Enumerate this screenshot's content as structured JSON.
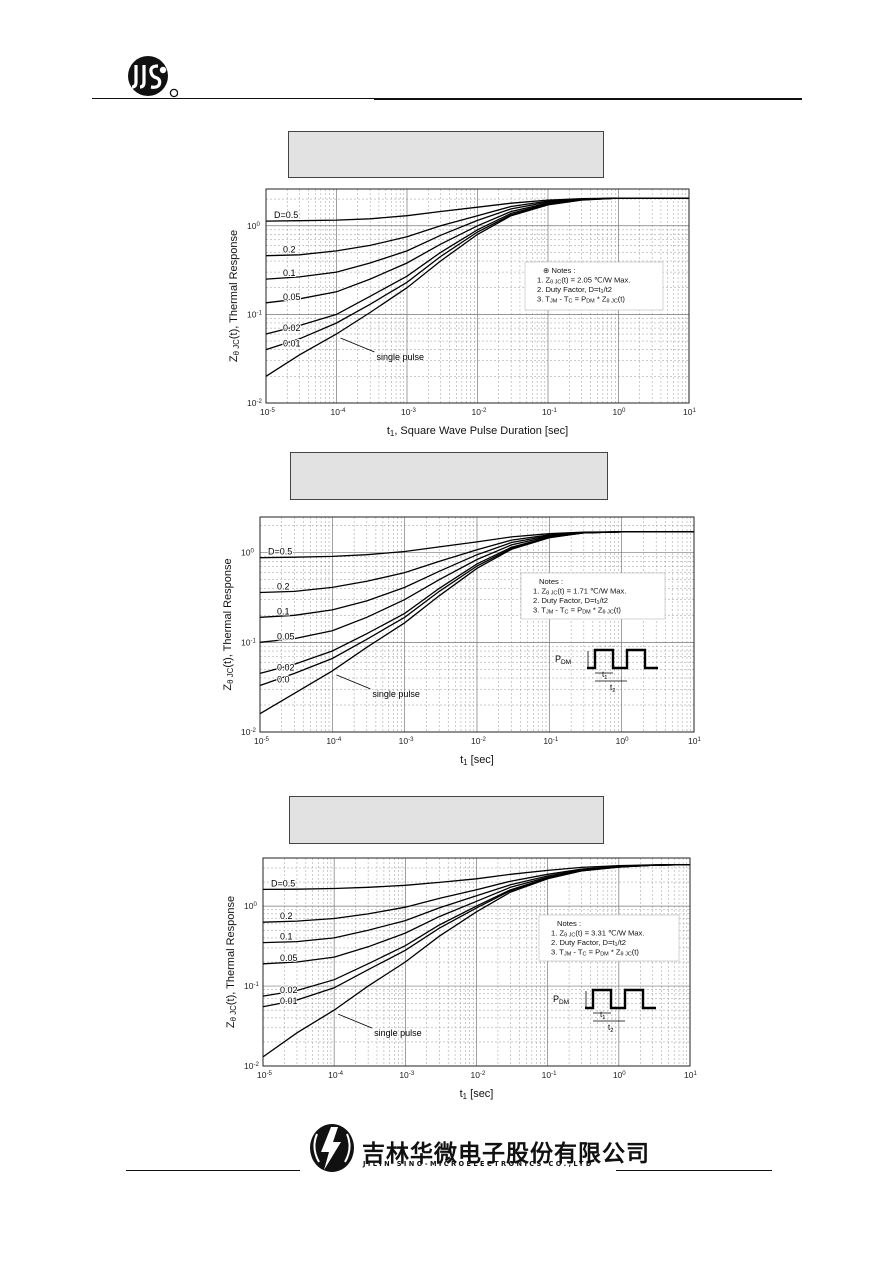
{
  "header": {
    "logo_icon": "jsmc-company-logo",
    "logo_letters": "JJS"
  },
  "footer": {
    "logo_icon": "sino-lightning-logo",
    "company_cn": "吉林华微电子股份有限公司",
    "company_en": "JILIN SINO-MICROELECTRONICS CO.,LTD"
  },
  "chart_data": [
    {
      "type": "line",
      "log_x": true,
      "log_y": true,
      "xlim": [
        1e-05,
        10
      ],
      "ylim": [
        0.01,
        2.6
      ],
      "y_tick_exponents": [
        -2,
        -1,
        0
      ],
      "x_tick_exponents": [
        -5,
        -4,
        -3,
        -2,
        -1,
        0,
        1
      ],
      "tick_base": "10",
      "title_box_empty": true,
      "ylabel_parts": [
        "Z",
        "θ JC",
        "(t), Thermal Response"
      ],
      "xlabel_parts": [
        "t",
        "1",
        ", Square Wave Pulse Duration [sec]"
      ],
      "zthjc_max": 2.05,
      "x": [
        1e-05,
        3e-05,
        0.0001,
        0.0003,
        0.001,
        0.003,
        0.01,
        0.03,
        0.1,
        0.3,
        1,
        3,
        10
      ],
      "series": [
        {
          "name": "D=0.5",
          "values": [
            1.13,
            1.14,
            1.16,
            1.2,
            1.3,
            1.45,
            1.62,
            1.8,
            1.95,
            2.02,
            2.05,
            2.05,
            2.05
          ]
        },
        {
          "name": "0.2",
          "values": [
            0.46,
            0.47,
            0.52,
            0.6,
            0.75,
            1.0,
            1.3,
            1.65,
            1.9,
            2.0,
            2.05,
            2.05,
            2.05
          ]
        },
        {
          "name": "0.1",
          "values": [
            0.25,
            0.265,
            0.3,
            0.38,
            0.52,
            0.78,
            1.15,
            1.55,
            1.85,
            2.0,
            2.05,
            2.05,
            2.05
          ]
        },
        {
          "name": "0.05",
          "values": [
            0.135,
            0.15,
            0.18,
            0.25,
            0.38,
            0.62,
            1.0,
            1.45,
            1.8,
            1.98,
            2.05,
            2.05,
            2.05
          ]
        },
        {
          "name": "0.02",
          "values": [
            0.06,
            0.075,
            0.1,
            0.16,
            0.27,
            0.5,
            0.9,
            1.38,
            1.76,
            1.97,
            2.05,
            2.05,
            2.05
          ]
        },
        {
          "name": "0.01",
          "values": [
            0.04,
            0.053,
            0.08,
            0.13,
            0.23,
            0.45,
            0.85,
            1.33,
            1.74,
            1.96,
            2.05,
            2.05,
            2.05
          ]
        },
        {
          "name": "single pulse",
          "values": [
            0.02,
            0.035,
            0.06,
            0.105,
            0.2,
            0.4,
            0.8,
            1.3,
            1.72,
            1.95,
            2.05,
            2.05,
            2.05
          ]
        }
      ],
      "series_labels": [
        "D=0.5",
        "0.2",
        "0.1",
        "0.05",
        "0.02",
        "0.01",
        "single pulse"
      ],
      "notes": {
        "lines": [
          {
            "pre": "Notes :",
            "sub": "",
            "post": ""
          },
          {
            "pre": "1. Z",
            "sub": "θ JC",
            "post": "(t) = 2.05 ℃/W Max."
          },
          {
            "pre": "2. Duty Factor, D=t",
            "sub": "1",
            "post": "/t2"
          },
          {
            "pre": "3. T",
            "sub": "JM",
            "post": " - T",
            "sub2": "C",
            "post2": " = P",
            "sub3": "DM",
            "post3": " * Z",
            "sub4": "θ JC",
            "post4": "(t)"
          }
        ],
        "bullet": "⊕"
      },
      "pulse_diagram": null
    },
    {
      "type": "line",
      "log_x": true,
      "log_y": true,
      "xlim": [
        1e-05,
        10
      ],
      "ylim": [
        0.01,
        2.5
      ],
      "y_tick_exponents": [
        -2,
        -1,
        0
      ],
      "x_tick_exponents": [
        -5,
        -4,
        -3,
        -2,
        -1,
        0,
        1
      ],
      "tick_base": "10",
      "title_box_empty": true,
      "ylabel_parts": [
        "Z",
        "θ JC",
        "(t), Thermal Response"
      ],
      "xlabel_parts": [
        "t",
        "1",
        " [sec]"
      ],
      "zthjc_max": 1.71,
      "x": [
        1e-05,
        3e-05,
        0.0001,
        0.0003,
        0.001,
        0.003,
        0.01,
        0.03,
        0.1,
        0.3,
        1,
        3,
        10
      ],
      "series": [
        {
          "name": "D=0.5",
          "values": [
            0.88,
            0.89,
            0.91,
            0.95,
            1.03,
            1.16,
            1.32,
            1.5,
            1.63,
            1.69,
            1.71,
            1.71,
            1.71
          ]
        },
        {
          "name": "0.2",
          "values": [
            0.36,
            0.37,
            0.41,
            0.48,
            0.6,
            0.8,
            1.08,
            1.38,
            1.58,
            1.68,
            1.71,
            1.71,
            1.71
          ]
        },
        {
          "name": "0.1",
          "values": [
            0.19,
            0.2,
            0.23,
            0.29,
            0.41,
            0.62,
            0.95,
            1.3,
            1.55,
            1.67,
            1.71,
            1.71,
            1.71
          ]
        },
        {
          "name": "0.05",
          "values": [
            0.1,
            0.11,
            0.135,
            0.19,
            0.3,
            0.5,
            0.84,
            1.22,
            1.52,
            1.67,
            1.71,
            1.71,
            1.71
          ]
        },
        {
          "name": "0.02",
          "values": [
            0.045,
            0.057,
            0.08,
            0.125,
            0.21,
            0.4,
            0.75,
            1.15,
            1.49,
            1.66,
            1.71,
            1.71,
            1.71
          ]
        },
        {
          "name": "0.0",
          "values": [
            0.033,
            0.045,
            0.066,
            0.108,
            0.19,
            0.37,
            0.71,
            1.12,
            1.48,
            1.66,
            1.71,
            1.71,
            1.71
          ]
        },
        {
          "name": "single pulse",
          "values": [
            0.016,
            0.027,
            0.048,
            0.088,
            0.165,
            0.33,
            0.67,
            1.09,
            1.47,
            1.66,
            1.71,
            1.71,
            1.71
          ]
        }
      ],
      "series_labels": [
        "D=0.5",
        "0.2",
        "0.1",
        "0.05",
        "0.02",
        "0.0",
        "single pulse"
      ],
      "notes": {
        "lines": [
          {
            "pre": "Notes :",
            "sub": "",
            "post": ""
          },
          {
            "pre": "1. Z",
            "sub": "θ JC",
            "post": "(t) = 1.71 ℃/W Max."
          },
          {
            "pre": "2. Duty Factor, D=t",
            "sub": "1",
            "post": "/t2"
          },
          {
            "pre": "3. T",
            "sub": "JM",
            "post": " - T",
            "sub2": "C",
            "post2": " = P",
            "sub3": "DM",
            "post3": " * Z",
            "sub4": "θ JC",
            "post4": "(t)"
          }
        ],
        "bullet": ""
      },
      "pulse_diagram": {
        "pdm": "P",
        "pdm_sub": "DM",
        "t1": "t",
        "t1_sub": "1",
        "t2": "t",
        "t2_sub": "2"
      }
    },
    {
      "type": "line",
      "log_x": true,
      "log_y": true,
      "xlim": [
        1e-05,
        10
      ],
      "ylim": [
        0.01,
        4.0
      ],
      "y_tick_exponents": [
        -2,
        -1,
        0
      ],
      "x_tick_exponents": [
        -5,
        -4,
        -3,
        -2,
        -1,
        0,
        1
      ],
      "tick_base": "10",
      "title_box_empty": true,
      "ylabel_parts": [
        "Z",
        "θ JC",
        "(t), Thermal Response"
      ],
      "xlabel_parts": [
        "t",
        "1",
        " [sec]"
      ],
      "zthjc_max": 3.31,
      "x": [
        1e-05,
        3e-05,
        0.0001,
        0.0003,
        0.001,
        0.003,
        0.01,
        0.03,
        0.1,
        0.3,
        1,
        3,
        10
      ],
      "series": [
        {
          "name": "D=0.5",
          "values": [
            1.62,
            1.63,
            1.66,
            1.72,
            1.82,
            1.98,
            2.2,
            2.5,
            2.8,
            3.05,
            3.2,
            3.28,
            3.31
          ]
        },
        {
          "name": "0.2",
          "values": [
            0.63,
            0.65,
            0.7,
            0.8,
            0.97,
            1.25,
            1.6,
            2.05,
            2.5,
            2.9,
            3.15,
            3.27,
            3.31
          ]
        },
        {
          "name": "0.1",
          "values": [
            0.35,
            0.36,
            0.4,
            0.5,
            0.66,
            0.95,
            1.35,
            1.85,
            2.38,
            2.85,
            3.12,
            3.26,
            3.31
          ]
        },
        {
          "name": "0.05",
          "values": [
            0.19,
            0.2,
            0.23,
            0.31,
            0.46,
            0.74,
            1.15,
            1.72,
            2.3,
            2.8,
            3.1,
            3.25,
            3.31
          ]
        },
        {
          "name": "0.02",
          "values": [
            0.075,
            0.088,
            0.12,
            0.19,
            0.32,
            0.58,
            1.0,
            1.6,
            2.25,
            2.78,
            3.09,
            3.25,
            3.31
          ]
        },
        {
          "name": "0.01",
          "values": [
            0.055,
            0.067,
            0.095,
            0.16,
            0.28,
            0.53,
            0.95,
            1.56,
            2.22,
            2.77,
            3.08,
            3.25,
            3.31
          ]
        },
        {
          "name": "single pulse",
          "values": [
            0.013,
            0.026,
            0.05,
            0.1,
            0.2,
            0.42,
            0.85,
            1.5,
            2.2,
            2.76,
            3.08,
            3.25,
            3.31
          ]
        }
      ],
      "series_labels": [
        "D=0.5",
        "0.2",
        "0.1",
        "0.05",
        "0.02",
        "0.01",
        "single pulse"
      ],
      "notes": {
        "lines": [
          {
            "pre": "Notes :",
            "sub": "",
            "post": ""
          },
          {
            "pre": "1. Z",
            "sub": "θ JC",
            "post": "(t) = 3.31 ℃/W Max."
          },
          {
            "pre": "2. Duty Factor, D=t",
            "sub": "1",
            "post": "/t2"
          },
          {
            "pre": "3. T",
            "sub": "JM",
            "post": " - T",
            "sub2": "C",
            "post2": " = P",
            "sub3": "DM",
            "post3": " * Z",
            "sub4": "θ JC",
            "post4": "(t)"
          }
        ],
        "bullet": ""
      },
      "pulse_diagram": {
        "pdm": "P",
        "pdm_sub": "DM",
        "t1": "t",
        "t1_sub": "1",
        "t2": "t",
        "t2_sub": "2"
      }
    }
  ]
}
